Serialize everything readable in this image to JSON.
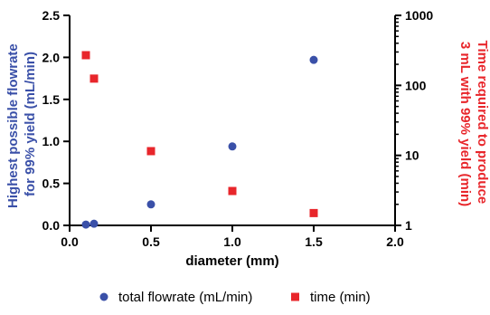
{
  "chart_data": {
    "type": "scatter",
    "xlabel": "diameter (mm)",
    "xlim": [
      0.0,
      2.0
    ],
    "xticks": [
      "0.0",
      "0.5",
      "1.0",
      "1.5",
      "2.0"
    ],
    "y_left": {
      "label_lines": [
        "Highest possible flowrate",
        "for 99% yield (mL/min)"
      ],
      "lim": [
        0.0,
        2.5
      ],
      "ticks": [
        "0.0",
        "0.5",
        "1.0",
        "1.5",
        "2.0",
        "2.5"
      ],
      "color": "#3a50a8"
    },
    "y_right": {
      "label_lines": [
        "Time required to produce",
        "3 mL with 99% yield (min)"
      ],
      "scale": "log",
      "lim": [
        1,
        1000
      ],
      "ticks": [
        "1",
        "10",
        "100",
        "1000"
      ],
      "color": "#e8262b"
    },
    "series": [
      {
        "name": "total flowrate (mL/min)",
        "axis": "left",
        "marker": "circle",
        "color": "#3a50a8",
        "x": [
          0.1,
          0.15,
          0.5,
          1.0,
          1.5
        ],
        "y": [
          0.01,
          0.02,
          0.25,
          0.94,
          1.97
        ]
      },
      {
        "name": "time (min)",
        "axis": "right",
        "marker": "square",
        "color": "#e8262b",
        "x": [
          0.1,
          0.15,
          0.5,
          1.0,
          1.5
        ],
        "y": [
          270,
          125,
          11.5,
          3.1,
          1.5
        ]
      }
    ],
    "legend": {
      "position": "bottom",
      "entries": [
        "total flowrate (mL/min)",
        "time (min)"
      ]
    },
    "grid": false
  }
}
